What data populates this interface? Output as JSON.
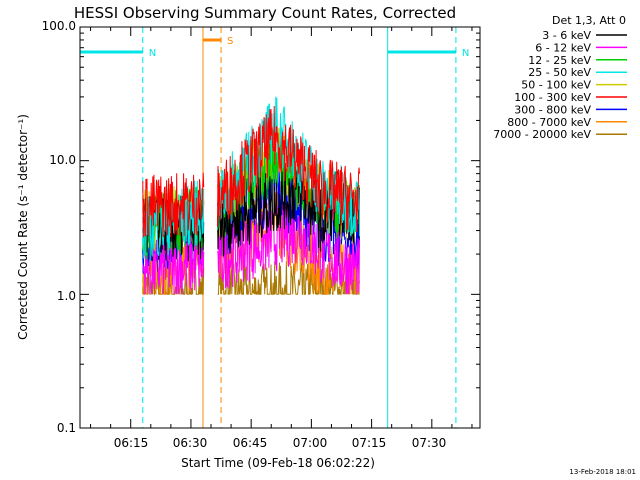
{
  "chart_data": {
    "type": "line",
    "title": "HESSI Observing Summary Count Rates, Corrected",
    "xlabel": "Start Time (09-Feb-18 06:02:22)",
    "ylabel": "Corrected Count Rate (s⁻¹ detector⁻¹)",
    "yscale": "log",
    "ylim": [
      0.1,
      100.0
    ],
    "xlim": [
      "06:02:22",
      "07:42:00"
    ],
    "x_ticks": [
      "06:15",
      "06:30",
      "06:45",
      "07:00",
      "07:15",
      "07:30"
    ],
    "y_ticks": [
      "0.1",
      "1.0",
      "10.0",
      "100.0"
    ],
    "legend_title": "Det 1,3, Att 0",
    "legend_position": "right",
    "grid": false,
    "timestamp": "13-Feb-2018 18:01",
    "series": [
      {
        "name": "3 - 6 keV",
        "color": "#000000",
        "values": [
          [
            6.3,
            3.0
          ],
          [
            6.6,
            3.2
          ],
          [
            6.95,
            6.0
          ],
          [
            7.05,
            3.5
          ],
          [
            7.1,
            5.0
          ],
          [
            7.2,
            4.0
          ]
        ]
      },
      {
        "name": "6 - 12 keV",
        "color": "#ff00ff",
        "values": [
          [
            6.3,
            1.5
          ],
          [
            6.6,
            1.8
          ],
          [
            6.95,
            3.0
          ],
          [
            7.05,
            2.0
          ],
          [
            7.2,
            1.5
          ]
        ]
      },
      {
        "name": "12 - 25 keV",
        "color": "#00cc00",
        "values": [
          [
            6.3,
            3.0
          ],
          [
            6.6,
            4.0
          ],
          [
            6.85,
            10.0
          ],
          [
            7.05,
            5.0
          ],
          [
            7.2,
            4.0
          ]
        ]
      },
      {
        "name": "25 - 50 keV",
        "color": "#00e5e5",
        "values": [
          [
            6.3,
            3.0
          ],
          [
            6.6,
            4.5
          ],
          [
            6.85,
            18.0
          ],
          [
            7.05,
            6.0
          ],
          [
            7.2,
            4.5
          ]
        ]
      },
      {
        "name": "50 - 100 keV",
        "color": "#cccc00",
        "values": [
          [
            6.3,
            3.5
          ],
          [
            6.6,
            4.0
          ],
          [
            6.85,
            12.0
          ],
          [
            7.05,
            5.0
          ],
          [
            7.2,
            4.0
          ]
        ]
      },
      {
        "name": "100 - 300 keV",
        "color": "#ff0000",
        "values": [
          [
            6.3,
            4.5
          ],
          [
            6.6,
            5.0
          ],
          [
            6.85,
            15.0
          ],
          [
            7.05,
            6.0
          ],
          [
            7.2,
            5.0
          ]
        ]
      },
      {
        "name": "300 - 800 keV",
        "color": "#0000ff",
        "values": [
          [
            6.3,
            2.5
          ],
          [
            6.6,
            3.0
          ],
          [
            6.85,
            6.0
          ],
          [
            7.05,
            3.0
          ],
          [
            7.2,
            2.5
          ]
        ]
      },
      {
        "name": "800 - 7000 keV",
        "color": "#ff8800",
        "values": [
          [
            6.3,
            1.5
          ],
          [
            6.6,
            2.0
          ],
          [
            6.85,
            3.5
          ],
          [
            7.05,
            1.5
          ],
          [
            7.2,
            1.5
          ]
        ]
      },
      {
        "name": "7000 - 20000 keV",
        "color": "#aa7700",
        "values": [
          [
            6.3,
            1.0
          ],
          [
            6.6,
            1.0
          ],
          [
            6.85,
            1.0
          ],
          [
            7.05,
            1.0
          ],
          [
            7.2,
            1.0
          ]
        ]
      }
    ],
    "annotations": [
      {
        "label": "N",
        "color": "#00e5e5",
        "x_start": "06:02:22",
        "x_end": "06:18:00",
        "level": 65
      },
      {
        "label": "N",
        "color": "#00e5e5",
        "x_start": "07:19:00",
        "x_end": "07:36:00",
        "level": 65
      },
      {
        "label": "S",
        "color": "#ff8800",
        "x_start": "06:33:00",
        "x_end": "06:37:30",
        "level": 80
      }
    ]
  }
}
